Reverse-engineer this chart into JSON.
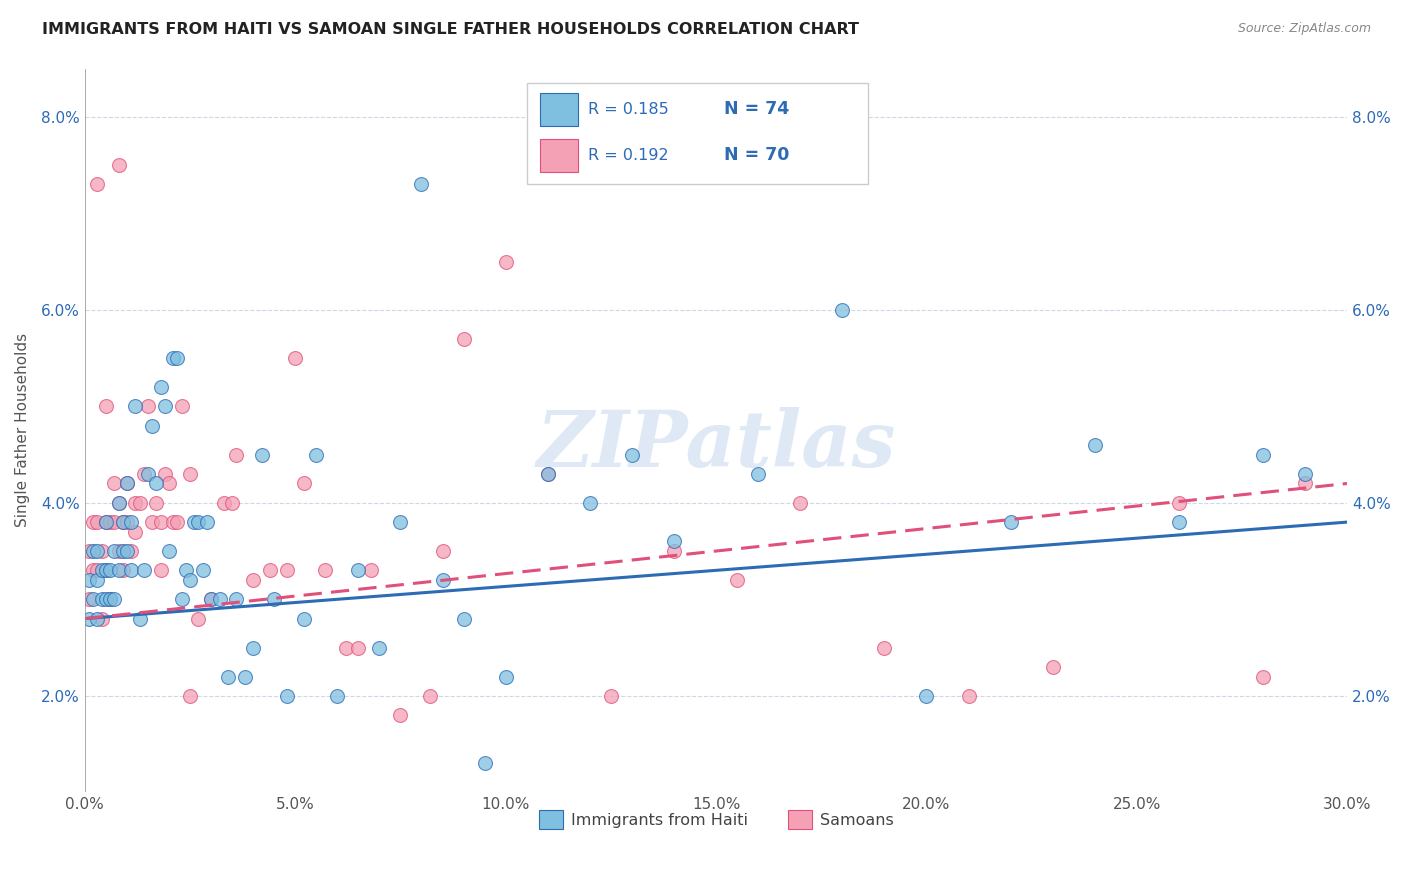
{
  "title": "IMMIGRANTS FROM HAITI VS SAMOAN SINGLE FATHER HOUSEHOLDS CORRELATION CHART",
  "source": "Source: ZipAtlas.com",
  "xlim": [
    0.0,
    0.3
  ],
  "ylim": [
    0.01,
    0.085
  ],
  "ylabel": "Single Father Households",
  "legend_label1": "Immigrants from Haiti",
  "legend_label2": "Samoans",
  "r1": 0.185,
  "n1": 74,
  "r2": 0.192,
  "n2": 70,
  "color_blue": "#7fbfdf",
  "color_pink": "#f4a0b5",
  "color_blue_line": "#2d6bb5",
  "color_pink_line": "#e0507a",
  "watermark": "ZIPatlas",
  "haiti_x": [
    0.001,
    0.001,
    0.002,
    0.002,
    0.003,
    0.003,
    0.003,
    0.004,
    0.004,
    0.005,
    0.005,
    0.005,
    0.006,
    0.006,
    0.007,
    0.007,
    0.008,
    0.008,
    0.009,
    0.009,
    0.01,
    0.01,
    0.011,
    0.011,
    0.012,
    0.013,
    0.014,
    0.015,
    0.016,
    0.017,
    0.018,
    0.019,
    0.02,
    0.021,
    0.022,
    0.023,
    0.024,
    0.025,
    0.026,
    0.027,
    0.028,
    0.029,
    0.03,
    0.032,
    0.034,
    0.036,
    0.038,
    0.04,
    0.042,
    0.045,
    0.048,
    0.052,
    0.055,
    0.06,
    0.065,
    0.07,
    0.075,
    0.08,
    0.085,
    0.09,
    0.095,
    0.1,
    0.11,
    0.12,
    0.13,
    0.14,
    0.16,
    0.18,
    0.2,
    0.22,
    0.24,
    0.26,
    0.28,
    0.29
  ],
  "haiti_y": [
    0.028,
    0.032,
    0.03,
    0.035,
    0.032,
    0.028,
    0.035,
    0.033,
    0.03,
    0.03,
    0.033,
    0.038,
    0.03,
    0.033,
    0.03,
    0.035,
    0.033,
    0.04,
    0.035,
    0.038,
    0.035,
    0.042,
    0.033,
    0.038,
    0.05,
    0.028,
    0.033,
    0.043,
    0.048,
    0.042,
    0.052,
    0.05,
    0.035,
    0.055,
    0.055,
    0.03,
    0.033,
    0.032,
    0.038,
    0.038,
    0.033,
    0.038,
    0.03,
    0.03,
    0.022,
    0.03,
    0.022,
    0.025,
    0.045,
    0.03,
    0.02,
    0.028,
    0.045,
    0.02,
    0.033,
    0.025,
    0.038,
    0.073,
    0.032,
    0.028,
    0.013,
    0.022,
    0.043,
    0.04,
    0.045,
    0.036,
    0.043,
    0.06,
    0.02,
    0.038,
    0.046,
    0.038,
    0.045,
    0.043
  ],
  "samoan_x": [
    0.001,
    0.001,
    0.002,
    0.002,
    0.003,
    0.003,
    0.004,
    0.004,
    0.005,
    0.005,
    0.006,
    0.006,
    0.007,
    0.007,
    0.008,
    0.008,
    0.009,
    0.009,
    0.01,
    0.01,
    0.011,
    0.012,
    0.013,
    0.014,
    0.015,
    0.016,
    0.017,
    0.018,
    0.019,
    0.02,
    0.021,
    0.022,
    0.023,
    0.025,
    0.027,
    0.03,
    0.033,
    0.036,
    0.04,
    0.044,
    0.048,
    0.052,
    0.057,
    0.062,
    0.068,
    0.075,
    0.082,
    0.09,
    0.1,
    0.11,
    0.125,
    0.14,
    0.155,
    0.17,
    0.19,
    0.21,
    0.23,
    0.26,
    0.28,
    0.29,
    0.003,
    0.005,
    0.008,
    0.012,
    0.018,
    0.025,
    0.035,
    0.05,
    0.065,
    0.085
  ],
  "samoan_y": [
    0.03,
    0.035,
    0.033,
    0.038,
    0.033,
    0.038,
    0.028,
    0.035,
    0.033,
    0.038,
    0.03,
    0.038,
    0.038,
    0.042,
    0.035,
    0.04,
    0.033,
    0.038,
    0.038,
    0.042,
    0.035,
    0.04,
    0.04,
    0.043,
    0.05,
    0.038,
    0.04,
    0.038,
    0.043,
    0.042,
    0.038,
    0.038,
    0.05,
    0.043,
    0.028,
    0.03,
    0.04,
    0.045,
    0.032,
    0.033,
    0.033,
    0.042,
    0.033,
    0.025,
    0.033,
    0.018,
    0.02,
    0.057,
    0.065,
    0.043,
    0.02,
    0.035,
    0.032,
    0.04,
    0.025,
    0.02,
    0.023,
    0.04,
    0.022,
    0.042,
    0.073,
    0.05,
    0.075,
    0.037,
    0.033,
    0.02,
    0.04,
    0.055,
    0.025,
    0.035
  ],
  "trend_haiti_x0": 0.0,
  "trend_haiti_x1": 0.3,
  "trend_haiti_y0": 0.028,
  "trend_haiti_y1": 0.038,
  "trend_samoan_x0": 0.0,
  "trend_samoan_x1": 0.3,
  "trend_samoan_y0": 0.028,
  "trend_samoan_y1": 0.042
}
